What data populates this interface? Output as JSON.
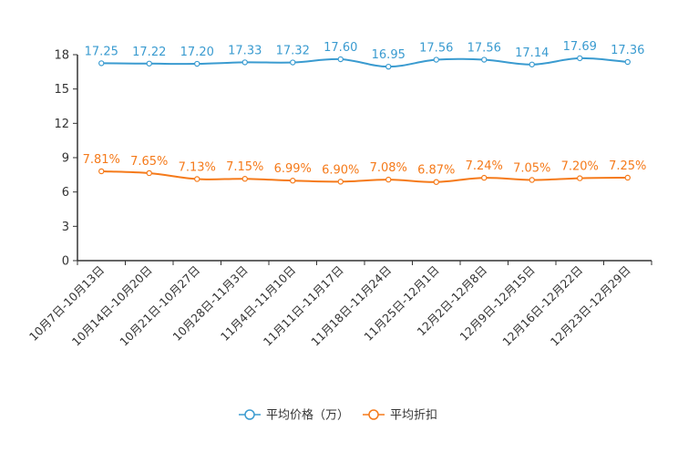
{
  "chart_data": {
    "type": "line",
    "categories": [
      "10月7日-10月13日",
      "10月14日-10月20日",
      "10月21日-10月27日",
      "10月28日-11月3日",
      "11月4日-11月10日",
      "11月11日-11月17日",
      "11月18日-11月24日",
      "11月25日-12月1日",
      "12月2日-12月8日",
      "12月9日-12月15日",
      "12月16日-12月22日",
      "12月23日-12月29日"
    ],
    "series": [
      {
        "name": "平均价格（万）",
        "color": "#3a9bd0",
        "values": [
          17.25,
          17.22,
          17.2,
          17.33,
          17.32,
          17.6,
          16.95,
          17.56,
          17.56,
          17.14,
          17.69,
          17.36
        ],
        "labels": [
          "17.25",
          "17.22",
          "17.20",
          "17.33",
          "17.32",
          "17.60",
          "16.95",
          "17.56",
          "17.56",
          "17.14",
          "17.69",
          "17.36"
        ]
      },
      {
        "name": "平均折扣",
        "color": "#f57a1a",
        "values": [
          7.81,
          7.65,
          7.13,
          7.15,
          6.99,
          6.9,
          7.08,
          6.87,
          7.24,
          7.05,
          7.2,
          7.25
        ],
        "labels": [
          "7.81%",
          "7.65%",
          "7.13%",
          "7.15%",
          "6.99%",
          "6.90%",
          "7.08%",
          "6.87%",
          "7.24%",
          "7.05%",
          "7.20%",
          "7.25%"
        ]
      }
    ],
    "ylim": [
      0,
      18
    ],
    "yticks": [
      "0",
      "3",
      "6",
      "9",
      "12",
      "15",
      "18"
    ],
    "legend_position": "bottom-center",
    "grid": false
  }
}
